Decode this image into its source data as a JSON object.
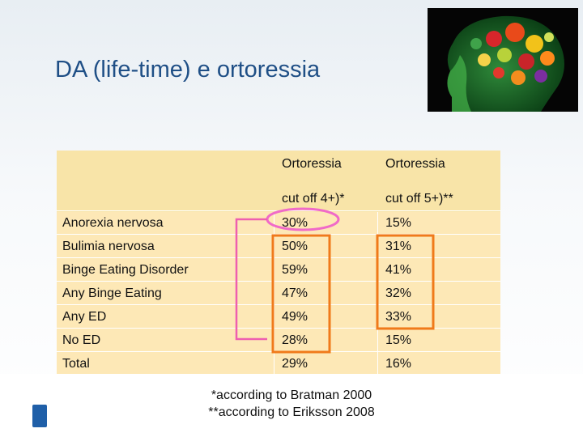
{
  "slide": {
    "title": "DA (life-time) e ortoressia",
    "footnote_1": "*according to Bratman 2000",
    "footnote_2": "**according to Eriksson 2008"
  },
  "table": {
    "col1_header": "Ortoressia",
    "col2_header": "Ortoressia",
    "col1_sub": "cut off 4+)*",
    "col2_sub": "cut off 5+)**",
    "rows": [
      {
        "label": "Anorexia nervosa",
        "v1": "30%",
        "v2": "15%"
      },
      {
        "label": "Bulimia nervosa",
        "v1": "50%",
        "v2": "31%"
      },
      {
        "label": "Binge Eating Disorder",
        "v1": "59%",
        "v2": "41%"
      },
      {
        "label": "Any Binge Eating",
        "v1": "47%",
        "v2": "32%"
      },
      {
        "label": "Any ED",
        "v1": "49%",
        "v2": "33%"
      },
      {
        "label": "No ED",
        "v1": "28%",
        "v2": "15%"
      },
      {
        "label": "Total",
        "v1": "29%",
        "v2": "16%"
      }
    ]
  },
  "colors": {
    "title": "#1f4f86",
    "table_fill": "#fde8b6",
    "highlight_orange": "#f07a1a",
    "highlight_pink": "#ee5fb0",
    "oval_pink": "#f06ac8"
  },
  "icons": {
    "brain_image": "brain-vegetables-image",
    "logo": "shield-logo-icon"
  }
}
